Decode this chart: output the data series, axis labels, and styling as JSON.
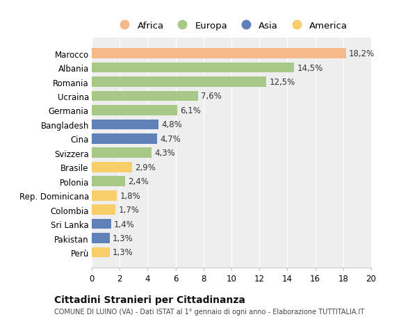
{
  "countries": [
    "Marocco",
    "Albania",
    "Romania",
    "Ucraina",
    "Germania",
    "Bangladesh",
    "Cina",
    "Svizzera",
    "Brasile",
    "Polonia",
    "Rep. Dominicana",
    "Colombia",
    "Sri Lanka",
    "Pakistan",
    "Perù"
  ],
  "values": [
    18.2,
    14.5,
    12.5,
    7.6,
    6.1,
    4.8,
    4.7,
    4.3,
    2.9,
    2.4,
    1.8,
    1.7,
    1.4,
    1.3,
    1.3
  ],
  "labels": [
    "18,2%",
    "14,5%",
    "12,5%",
    "7,6%",
    "6,1%",
    "4,8%",
    "4,7%",
    "4,3%",
    "2,9%",
    "2,4%",
    "1,8%",
    "1,7%",
    "1,4%",
    "1,3%",
    "1,3%"
  ],
  "continents": [
    "Africa",
    "Europa",
    "Europa",
    "Europa",
    "Europa",
    "Asia",
    "Asia",
    "Europa",
    "America",
    "Europa",
    "America",
    "America",
    "Asia",
    "Asia",
    "America"
  ],
  "colors": {
    "Africa": "#F5B98A",
    "Europa": "#A8C888",
    "Asia": "#6080B8",
    "America": "#F8CE6A"
  },
  "title": "Cittadini Stranieri per Cittadinanza",
  "subtitle": "COMUNE DI LUINO (VA) - Dati ISTAT al 1° gennaio di ogni anno - Elaborazione TUTTITALIA.IT",
  "xlim": [
    0,
    20
  ],
  "xticks": [
    0,
    2,
    4,
    6,
    8,
    10,
    12,
    14,
    16,
    18,
    20
  ],
  "background_color": "#ffffff",
  "plot_background": "#eeeeee",
  "grid_color": "#ffffff",
  "bar_height": 0.72,
  "label_fontsize": 8.5,
  "tick_fontsize": 8.5,
  "legend_fontsize": 9.5
}
